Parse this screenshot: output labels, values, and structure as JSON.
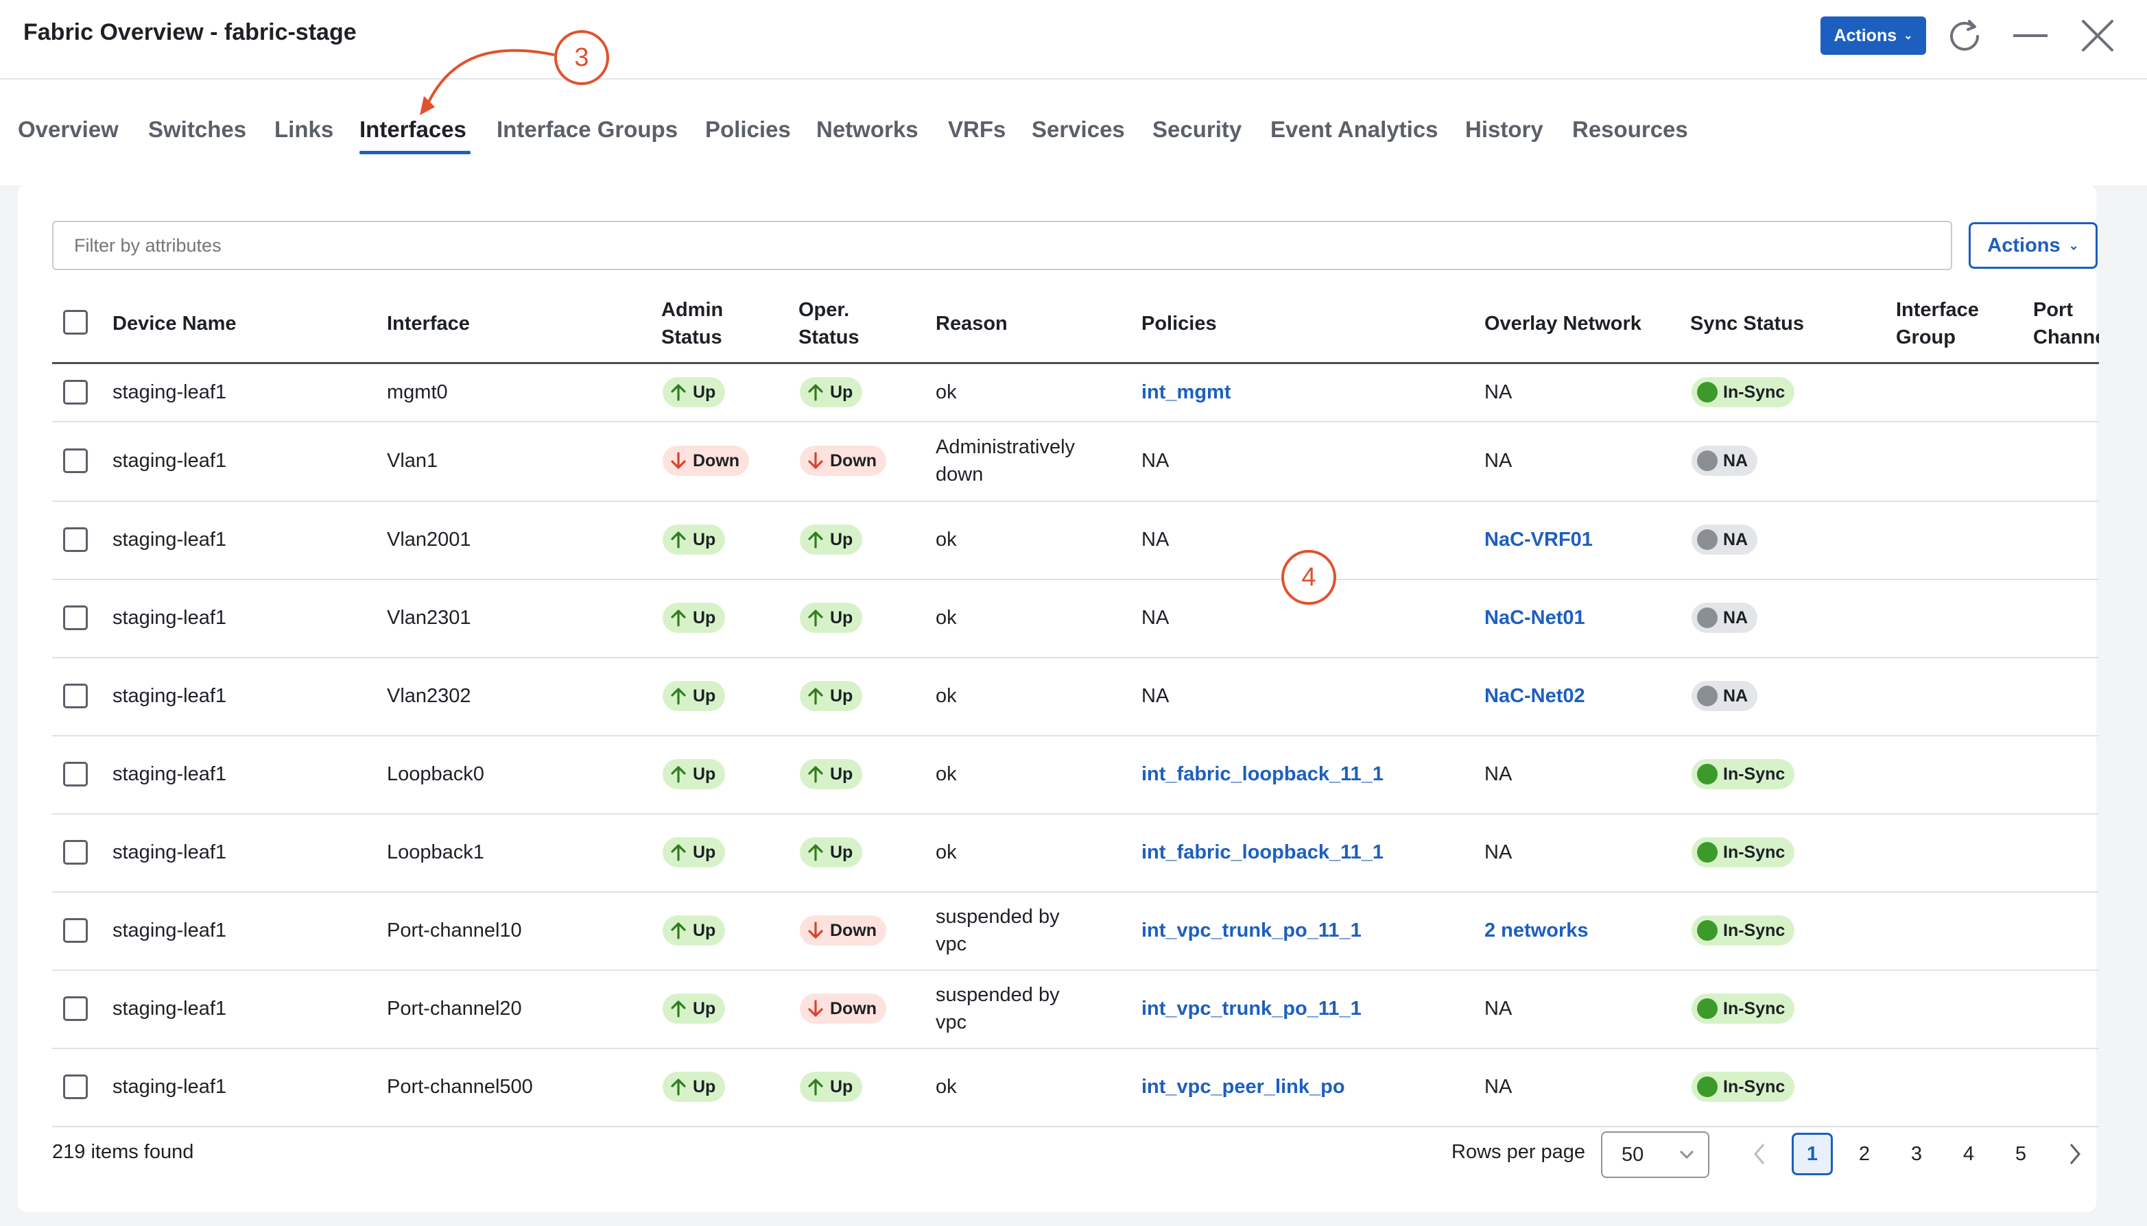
{
  "window": {
    "title": "Fabric Overview - fabric-stage",
    "actions_label": "Actions",
    "refresh_icon": "refresh-icon",
    "minimize_icon": "minimize-icon",
    "close_icon": "close-icon"
  },
  "tabs": [
    {
      "label": "Overview"
    },
    {
      "label": "Switches"
    },
    {
      "label": "Links"
    },
    {
      "label": "Interfaces",
      "active": true
    },
    {
      "label": "Interface Groups"
    },
    {
      "label": "Policies"
    },
    {
      "label": "Networks"
    },
    {
      "label": "VRFs"
    },
    {
      "label": "Services"
    },
    {
      "label": "Security"
    },
    {
      "label": "Event Analytics"
    },
    {
      "label": "History"
    },
    {
      "label": "Resources"
    }
  ],
  "toolbar": {
    "filter_placeholder": "Filter by attributes",
    "actions_label": "Actions"
  },
  "table": {
    "columns": {
      "device_name": "Device Name",
      "interface": "Interface",
      "admin_status": [
        "Admin",
        "Status"
      ],
      "oper_status": [
        "Oper.",
        "Status"
      ],
      "reason": "Reason",
      "policies": "Policies",
      "overlay_network": "Overlay Network",
      "sync_status": "Sync Status",
      "interface_group": [
        "Interface",
        "Group"
      ],
      "port_channel": [
        "Port",
        "Channel"
      ]
    },
    "rows": [
      {
        "device": "staging-leaf1",
        "interface": "mgmt0",
        "admin": "Up",
        "oper": "Up",
        "reason": [
          "ok"
        ],
        "policy": "int_mgmt",
        "policy_link": true,
        "overlay": "NA",
        "overlay_link": false,
        "sync": "In-Sync"
      },
      {
        "device": "staging-leaf1",
        "interface": "Vlan1",
        "admin": "Down",
        "oper": "Down",
        "reason": [
          "Administratively",
          "down"
        ],
        "policy": "NA",
        "policy_link": false,
        "overlay": "NA",
        "overlay_link": false,
        "sync": "NA"
      },
      {
        "device": "staging-leaf1",
        "interface": "Vlan2001",
        "admin": "Up",
        "oper": "Up",
        "reason": [
          "ok"
        ],
        "policy": "NA",
        "policy_link": false,
        "overlay": "NaC-VRF01",
        "overlay_link": true,
        "sync": "NA"
      },
      {
        "device": "staging-leaf1",
        "interface": "Vlan2301",
        "admin": "Up",
        "oper": "Up",
        "reason": [
          "ok"
        ],
        "policy": "NA",
        "policy_link": false,
        "overlay": "NaC-Net01",
        "overlay_link": true,
        "sync": "NA"
      },
      {
        "device": "staging-leaf1",
        "interface": "Vlan2302",
        "admin": "Up",
        "oper": "Up",
        "reason": [
          "ok"
        ],
        "policy": "NA",
        "policy_link": false,
        "overlay": "NaC-Net02",
        "overlay_link": true,
        "sync": "NA"
      },
      {
        "device": "staging-leaf1",
        "interface": "Loopback0",
        "admin": "Up",
        "oper": "Up",
        "reason": [
          "ok"
        ],
        "policy": "int_fabric_loopback_11_1",
        "policy_link": true,
        "overlay": "NA",
        "overlay_link": false,
        "sync": "In-Sync"
      },
      {
        "device": "staging-leaf1",
        "interface": "Loopback1",
        "admin": "Up",
        "oper": "Up",
        "reason": [
          "ok"
        ],
        "policy": "int_fabric_loopback_11_1",
        "policy_link": true,
        "overlay": "NA",
        "overlay_link": false,
        "sync": "In-Sync"
      },
      {
        "device": "staging-leaf1",
        "interface": "Port-channel10",
        "admin": "Up",
        "oper": "Down",
        "reason": [
          "suspended by",
          "vpc"
        ],
        "policy": "int_vpc_trunk_po_11_1",
        "policy_link": true,
        "overlay": "2 networks",
        "overlay_link": true,
        "sync": "In-Sync"
      },
      {
        "device": "staging-leaf1",
        "interface": "Port-channel20",
        "admin": "Up",
        "oper": "Down",
        "reason": [
          "suspended by",
          "vpc"
        ],
        "policy": "int_vpc_trunk_po_11_1",
        "policy_link": true,
        "overlay": "NA",
        "overlay_link": false,
        "sync": "In-Sync"
      },
      {
        "device": "staging-leaf1",
        "interface": "Port-channel500",
        "admin": "Up",
        "oper": "Up",
        "reason": [
          "ok"
        ],
        "policy": "int_vpc_peer_link_po",
        "policy_link": true,
        "overlay": "NA",
        "overlay_link": false,
        "sync": "In-Sync"
      }
    ]
  },
  "footer": {
    "items_found": "219 items found",
    "rows_per_page_label": "Rows per page",
    "rows_per_page_value": "50",
    "pages": [
      "1",
      "2",
      "3",
      "4",
      "5"
    ],
    "current_page": "1"
  },
  "annotations": [
    {
      "label": "3"
    },
    {
      "label": "4"
    }
  ],
  "colors": {
    "primary": "#1d5fbf",
    "up_bg": "#d7f2c9",
    "up_arrow": "#2f7d1f",
    "down_bg": "#fde2de",
    "down_arrow": "#d8432a",
    "sync_dot": "#3b9a2a",
    "na_dot": "#8a8f96",
    "annotation": "#e0522d"
  }
}
